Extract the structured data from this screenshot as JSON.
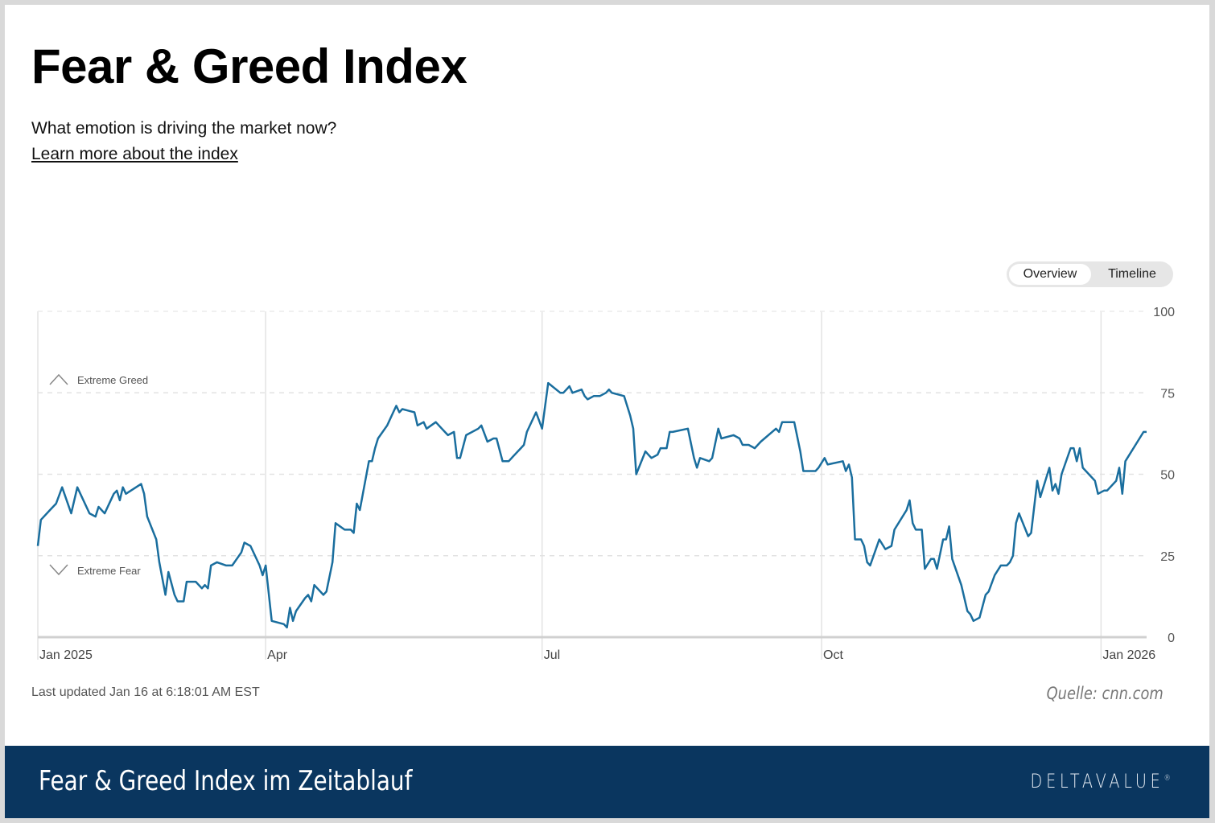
{
  "header": {
    "title": "Fear & Greed Index",
    "subtitle": "What emotion is driving the market now?",
    "link": "Learn more about the index"
  },
  "toggle": {
    "options": [
      "Overview",
      "Timeline"
    ],
    "selected": "Overview"
  },
  "footer": {
    "last_updated": "Last updated Jan 16 at 6:18:01 AM EST",
    "source": "Quelle: cnn.com"
  },
  "banner": {
    "title": "Fear & Greed Index im Zeitablauf",
    "logo": "DELTAVALUE"
  },
  "colors": {
    "line": "#1a6e9e",
    "banner": "#0a365f"
  },
  "chart_data": {
    "type": "line",
    "title": "",
    "xlim": [
      "2025-01-16",
      "2026-01-16"
    ],
    "ylim": [
      0,
      100
    ],
    "yticks": [
      0,
      25,
      50,
      75,
      100
    ],
    "xticks": [
      {
        "date": "2025-01-16",
        "label": "Jan 2025"
      },
      {
        "date": "2025-04-01",
        "label": "Apr"
      },
      {
        "date": "2025-07-01",
        "label": "Jul"
      },
      {
        "date": "2025-10-01",
        "label": "Oct"
      },
      {
        "date": "2026-01-01",
        "label": "Jan 2026"
      }
    ],
    "annotations": {
      "upper": "Extreme Greed",
      "lower": "Extreme Fear"
    },
    "grid": true,
    "points": [
      [
        "2025-01-16",
        28
      ],
      [
        "2025-01-17",
        36
      ],
      [
        "2025-01-20",
        39
      ],
      [
        "2025-01-22",
        41
      ],
      [
        "2025-01-24",
        46
      ],
      [
        "2025-01-27",
        38
      ],
      [
        "2025-01-29",
        46
      ],
      [
        "2025-02-02",
        38
      ],
      [
        "2025-02-04",
        37
      ],
      [
        "2025-02-05",
        40
      ],
      [
        "2025-02-07",
        38
      ],
      [
        "2025-02-10",
        44
      ],
      [
        "2025-02-11",
        45
      ],
      [
        "2025-02-12",
        42
      ],
      [
        "2025-02-13",
        46
      ],
      [
        "2025-02-14",
        44
      ],
      [
        "2025-02-19",
        47
      ],
      [
        "2025-02-20",
        44
      ],
      [
        "2025-02-21",
        37
      ],
      [
        "2025-02-24",
        30
      ],
      [
        "2025-02-25",
        23
      ],
      [
        "2025-02-27",
        13
      ],
      [
        "2025-02-28",
        20
      ],
      [
        "2025-03-02",
        13
      ],
      [
        "2025-03-03",
        11
      ],
      [
        "2025-03-05",
        11
      ],
      [
        "2025-03-06",
        17
      ],
      [
        "2025-03-09",
        17
      ],
      [
        "2025-03-11",
        15
      ],
      [
        "2025-03-12",
        16
      ],
      [
        "2025-03-13",
        15
      ],
      [
        "2025-03-14",
        22
      ],
      [
        "2025-03-16",
        23
      ],
      [
        "2025-03-19",
        22
      ],
      [
        "2025-03-21",
        22
      ],
      [
        "2025-03-24",
        26
      ],
      [
        "2025-03-25",
        29
      ],
      [
        "2025-03-27",
        28
      ],
      [
        "2025-03-30",
        22
      ],
      [
        "2025-03-31",
        19
      ],
      [
        "2025-04-01",
        22
      ],
      [
        "2025-04-03",
        5
      ],
      [
        "2025-04-07",
        4
      ],
      [
        "2025-04-08",
        3
      ],
      [
        "2025-04-09",
        9
      ],
      [
        "2025-04-10",
        5
      ],
      [
        "2025-04-11",
        8
      ],
      [
        "2025-04-14",
        12
      ],
      [
        "2025-04-15",
        13
      ],
      [
        "2025-04-16",
        11
      ],
      [
        "2025-04-17",
        16
      ],
      [
        "2025-04-20",
        13
      ],
      [
        "2025-04-21",
        14
      ],
      [
        "2025-04-23",
        23
      ],
      [
        "2025-04-24",
        35
      ],
      [
        "2025-04-27",
        33
      ],
      [
        "2025-04-29",
        33
      ],
      [
        "2025-04-30",
        32
      ],
      [
        "2025-05-01",
        41
      ],
      [
        "2025-05-02",
        39
      ],
      [
        "2025-05-05",
        54
      ],
      [
        "2025-05-06",
        54
      ],
      [
        "2025-05-07",
        58
      ],
      [
        "2025-05-08",
        61
      ],
      [
        "2025-05-11",
        65
      ],
      [
        "2025-05-13",
        69
      ],
      [
        "2025-05-14",
        71
      ],
      [
        "2025-05-15",
        69
      ],
      [
        "2025-05-16",
        70
      ],
      [
        "2025-05-20",
        69
      ],
      [
        "2025-05-21",
        65
      ],
      [
        "2025-05-23",
        66
      ],
      [
        "2025-05-24",
        64
      ],
      [
        "2025-05-27",
        66
      ],
      [
        "2025-05-29",
        64
      ],
      [
        "2025-05-30",
        63
      ],
      [
        "2025-05-31",
        62
      ],
      [
        "2025-06-02",
        63
      ],
      [
        "2025-06-03",
        55
      ],
      [
        "2025-06-04",
        55
      ],
      [
        "2025-06-06",
        62
      ],
      [
        "2025-06-10",
        64
      ],
      [
        "2025-06-11",
        65
      ],
      [
        "2025-06-13",
        60
      ],
      [
        "2025-06-15",
        61
      ],
      [
        "2025-06-16",
        61
      ],
      [
        "2025-06-18",
        54
      ],
      [
        "2025-06-20",
        54
      ],
      [
        "2025-06-22",
        56
      ],
      [
        "2025-06-24",
        58
      ],
      [
        "2025-06-25",
        59
      ],
      [
        "2025-06-26",
        63
      ],
      [
        "2025-06-29",
        69
      ],
      [
        "2025-07-01",
        64
      ],
      [
        "2025-07-03",
        78
      ],
      [
        "2025-07-07",
        75
      ],
      [
        "2025-07-08",
        75
      ],
      [
        "2025-07-10",
        77
      ],
      [
        "2025-07-11",
        75
      ],
      [
        "2025-07-14",
        76
      ],
      [
        "2025-07-15",
        74
      ],
      [
        "2025-07-16",
        73
      ],
      [
        "2025-07-18",
        74
      ],
      [
        "2025-07-20",
        74
      ],
      [
        "2025-07-22",
        75
      ],
      [
        "2025-07-23",
        76
      ],
      [
        "2025-07-24",
        75
      ],
      [
        "2025-07-28",
        74
      ],
      [
        "2025-07-30",
        68
      ],
      [
        "2025-07-31",
        64
      ],
      [
        "2025-08-01",
        50
      ],
      [
        "2025-08-04",
        57
      ],
      [
        "2025-08-05",
        56
      ],
      [
        "2025-08-06",
        55
      ],
      [
        "2025-08-08",
        56
      ],
      [
        "2025-08-09",
        58
      ],
      [
        "2025-08-11",
        58
      ],
      [
        "2025-08-12",
        63
      ],
      [
        "2025-08-13",
        63
      ],
      [
        "2025-08-18",
        64
      ],
      [
        "2025-08-20",
        55
      ],
      [
        "2025-08-21",
        52
      ],
      [
        "2025-08-22",
        55
      ],
      [
        "2025-08-25",
        54
      ],
      [
        "2025-08-26",
        55
      ],
      [
        "2025-08-28",
        64
      ],
      [
        "2025-08-29",
        61
      ],
      [
        "2025-09-02",
        62
      ],
      [
        "2025-09-04",
        61
      ],
      [
        "2025-09-05",
        59
      ],
      [
        "2025-09-07",
        59
      ],
      [
        "2025-09-09",
        58
      ],
      [
        "2025-09-11",
        60
      ],
      [
        "2025-09-16",
        64
      ],
      [
        "2025-09-17",
        63
      ],
      [
        "2025-09-18",
        66
      ],
      [
        "2025-09-22",
        66
      ],
      [
        "2025-09-24",
        57
      ],
      [
        "2025-09-25",
        51
      ],
      [
        "2025-09-29",
        51
      ],
      [
        "2025-09-30",
        52
      ],
      [
        "2025-10-02",
        55
      ],
      [
        "2025-10-03",
        53
      ],
      [
        "2025-10-08",
        54
      ],
      [
        "2025-10-09",
        51
      ],
      [
        "2025-10-10",
        53
      ],
      [
        "2025-10-11",
        49
      ],
      [
        "2025-10-12",
        30
      ],
      [
        "2025-10-14",
        30
      ],
      [
        "2025-10-15",
        28
      ],
      [
        "2025-10-16",
        23
      ],
      [
        "2025-10-17",
        22
      ],
      [
        "2025-10-20",
        30
      ],
      [
        "2025-10-22",
        27
      ],
      [
        "2025-10-24",
        28
      ],
      [
        "2025-10-25",
        33
      ],
      [
        "2025-10-29",
        39
      ],
      [
        "2025-10-30",
        42
      ],
      [
        "2025-10-31",
        35
      ],
      [
        "2025-11-01",
        33
      ],
      [
        "2025-11-03",
        33
      ],
      [
        "2025-11-04",
        21
      ],
      [
        "2025-11-06",
        24
      ],
      [
        "2025-11-07",
        24
      ],
      [
        "2025-11-08",
        21
      ],
      [
        "2025-11-10",
        30
      ],
      [
        "2025-11-11",
        30
      ],
      [
        "2025-11-12",
        34
      ],
      [
        "2025-11-13",
        24
      ],
      [
        "2025-11-16",
        16
      ],
      [
        "2025-11-18",
        8
      ],
      [
        "2025-11-19",
        7
      ],
      [
        "2025-11-20",
        5
      ],
      [
        "2025-11-22",
        6
      ],
      [
        "2025-11-24",
        13
      ],
      [
        "2025-11-25",
        14
      ],
      [
        "2025-11-27",
        19
      ],
      [
        "2025-11-29",
        22
      ],
      [
        "2025-12-01",
        22
      ],
      [
        "2025-12-02",
        23
      ],
      [
        "2025-12-03",
        25
      ],
      [
        "2025-12-04",
        35
      ],
      [
        "2025-12-05",
        38
      ],
      [
        "2025-12-08",
        31
      ],
      [
        "2025-12-09",
        32
      ],
      [
        "2025-12-11",
        48
      ],
      [
        "2025-12-12",
        43
      ],
      [
        "2025-12-15",
        52
      ],
      [
        "2025-12-16",
        45
      ],
      [
        "2025-12-17",
        47
      ],
      [
        "2025-12-18",
        44
      ],
      [
        "2025-12-19",
        50
      ],
      [
        "2025-12-22",
        58
      ],
      [
        "2025-12-23",
        58
      ],
      [
        "2025-12-24",
        54
      ],
      [
        "2025-12-25",
        58
      ],
      [
        "2025-12-26",
        52
      ],
      [
        "2025-12-30",
        48
      ],
      [
        "2025-12-31",
        44
      ],
      [
        "2026-01-02",
        45
      ],
      [
        "2026-01-03",
        45
      ],
      [
        "2026-01-06",
        48
      ],
      [
        "2026-01-07",
        52
      ],
      [
        "2026-01-08",
        44
      ],
      [
        "2026-01-09",
        54
      ],
      [
        "2026-01-13",
        60
      ],
      [
        "2026-01-15",
        63
      ],
      [
        "2026-01-16",
        63
      ]
    ]
  }
}
